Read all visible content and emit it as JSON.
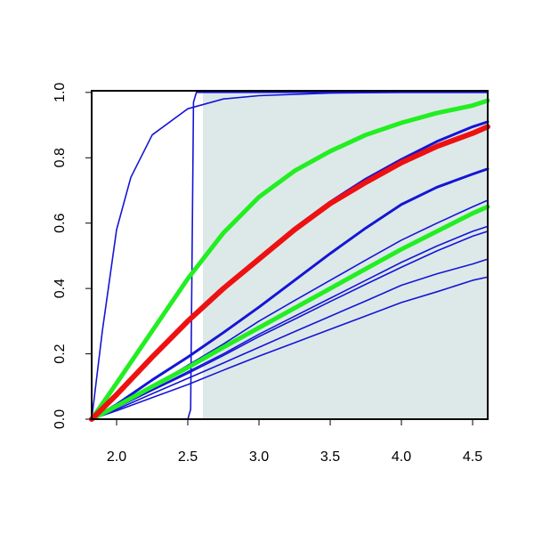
{
  "chart_data": {
    "type": "line",
    "xlim": [
      1.825,
      4.606
    ],
    "ylim": [
      0,
      1.005
    ],
    "xticks": [
      {
        "value": 2.0,
        "label": "2.0"
      },
      2.5,
      {
        "value": 3.0,
        "label": "3.0"
      },
      3.5,
      {
        "value": 4.0,
        "label": "4.0"
      },
      4.5
    ],
    "yticks": [
      {
        "value": 0,
        "label": "0.0"
      },
      0.2,
      0.4,
      0.6,
      0.8,
      {
        "value": 1,
        "label": "1.0"
      }
    ],
    "shade": {
      "xlim": [
        2.606,
        4.606
      ],
      "ylim": [
        0,
        1
      ],
      "color": "#dde9e9"
    },
    "series": [
      {
        "color": "#1515d5",
        "width": 1.6,
        "x": [
          1.825,
          2.5,
          2.52,
          2.53,
          2.54,
          2.56,
          4.606
        ],
        "values": [
          0,
          0,
          0.03,
          0.5,
          0.97,
          1,
          1
        ]
      },
      {
        "color": "#1515d5",
        "width": 1.6,
        "x": [
          1.825,
          1.9,
          2.0,
          2.1,
          2.25,
          2.5,
          2.75,
          3.0,
          3.5,
          4.0,
          4.606
        ],
        "values": [
          0,
          0.27,
          0.58,
          0.74,
          0.87,
          0.95,
          0.98,
          0.99,
          0.998,
          1,
          1
        ]
      },
      {
        "color": "#1515d5",
        "width": 1.6,
        "x": [
          1.825,
          2.0,
          2.25,
          2.5,
          2.75,
          3.0,
          3.25,
          3.5,
          3.75,
          4.0,
          4.25,
          4.5,
          4.606
        ],
        "values": [
          0,
          0.026,
          0.066,
          0.106,
          0.15,
          0.193,
          0.234,
          0.275,
          0.316,
          0.357,
          0.39,
          0.425,
          0.435
        ]
      },
      {
        "color": "#1515d5",
        "width": 1.6,
        "x": [
          1.825,
          2.0,
          2.25,
          2.5,
          2.75,
          3.0,
          3.25,
          3.5,
          3.75,
          4.0,
          4.25,
          4.5,
          4.606
        ],
        "values": [
          0,
          0.03,
          0.078,
          0.125,
          0.172,
          0.22,
          0.268,
          0.315,
          0.362,
          0.41,
          0.445,
          0.475,
          0.49
        ]
      },
      {
        "color": "#1515d5",
        "width": 1.6,
        "x": [
          1.825,
          2.0,
          2.25,
          2.5,
          2.75,
          3.0,
          3.25,
          3.5,
          3.75,
          4.0,
          4.25,
          4.5,
          4.606
        ],
        "values": [
          0,
          0.035,
          0.088,
          0.14,
          0.195,
          0.253,
          0.306,
          0.36,
          0.413,
          0.465,
          0.515,
          0.56,
          0.575
        ]
      },
      {
        "color": "#1515d5",
        "width": 1.6,
        "x": [
          1.825,
          2.0,
          2.25,
          2.5,
          2.75,
          3.0,
          3.25,
          3.5,
          3.75,
          4.0,
          4.25,
          4.5,
          4.606
        ],
        "values": [
          0,
          0.035,
          0.09,
          0.145,
          0.2,
          0.26,
          0.315,
          0.37,
          0.425,
          0.48,
          0.53,
          0.575,
          0.59
        ]
      },
      {
        "color": "#1515d5",
        "width": 1.6,
        "x": [
          1.825,
          2.0,
          2.25,
          2.5,
          2.75,
          3.0,
          3.25,
          3.5,
          3.75,
          4.0,
          4.25,
          4.5,
          4.606
        ],
        "values": [
          0,
          0.04,
          0.1,
          0.165,
          0.23,
          0.3,
          0.363,
          0.425,
          0.487,
          0.548,
          0.6,
          0.65,
          0.67
        ]
      },
      {
        "color": "#1515d5",
        "width": 3,
        "x": [
          1.825,
          2.0,
          2.25,
          2.5,
          2.75,
          3.0,
          3.25,
          3.5,
          3.75,
          4.0,
          4.25,
          4.5,
          4.606
        ],
        "values": [
          0,
          0.045,
          0.12,
          0.19,
          0.265,
          0.343,
          0.425,
          0.507,
          0.585,
          0.657,
          0.71,
          0.75,
          0.766
        ]
      },
      {
        "color": "#1515d5",
        "width": 3,
        "x": [
          1.825,
          2.0,
          2.25,
          2.5,
          2.75,
          3.0,
          3.25,
          3.5,
          3.75,
          4.0,
          4.25,
          4.5,
          4.606
        ],
        "values": [
          0,
          0.075,
          0.19,
          0.3,
          0.4,
          0.495,
          0.585,
          0.665,
          0.735,
          0.795,
          0.85,
          0.895,
          0.91
        ]
      },
      {
        "color": "#22ee22",
        "width": 5,
        "x": [
          1.825,
          2.0,
          2.25,
          2.5,
          2.75,
          3.0,
          3.25,
          3.5,
          3.75,
          4.0,
          4.25,
          4.5,
          4.606
        ],
        "values": [
          0,
          0.04,
          0.1,
          0.158,
          0.22,
          0.28,
          0.34,
          0.4,
          0.46,
          0.52,
          0.575,
          0.63,
          0.65
        ]
      },
      {
        "color": "#22ee22",
        "width": 5,
        "x": [
          1.825,
          2.0,
          2.25,
          2.5,
          2.75,
          3.0,
          3.25,
          3.5,
          3.75,
          4.0,
          4.25,
          4.5,
          4.606
        ],
        "values": [
          0,
          0.11,
          0.27,
          0.43,
          0.57,
          0.68,
          0.76,
          0.82,
          0.87,
          0.907,
          0.937,
          0.96,
          0.975
        ]
      },
      {
        "color": "#ee1111",
        "width": 6,
        "x": [
          1.825,
          2.0,
          2.25,
          2.5,
          2.75,
          3.0,
          3.25,
          3.5,
          3.75,
          4.0,
          4.25,
          4.5,
          4.606
        ],
        "values": [
          0,
          0.075,
          0.19,
          0.3,
          0.4,
          0.49,
          0.58,
          0.66,
          0.725,
          0.785,
          0.835,
          0.875,
          0.895
        ]
      }
    ]
  }
}
